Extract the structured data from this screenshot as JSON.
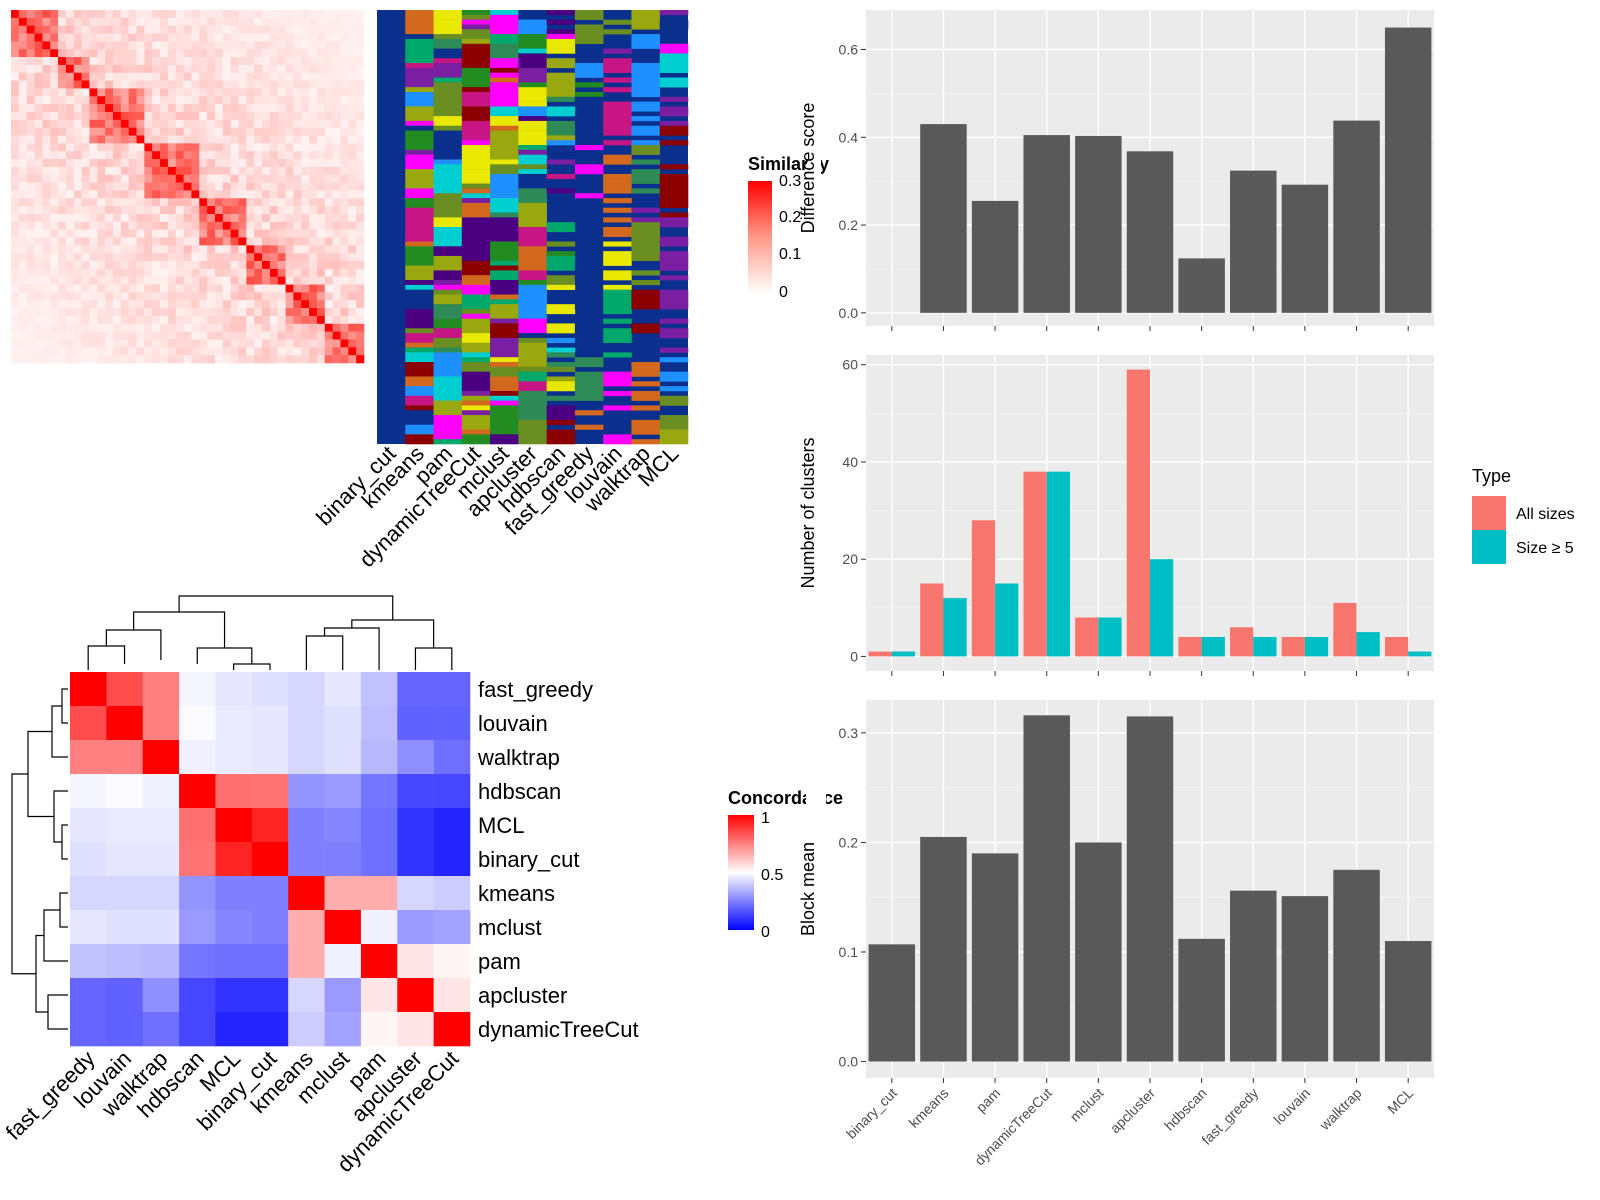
{
  "chart_data": [
    {
      "id": "similarity-heatmap",
      "type": "heatmap",
      "legend_title": "Similarity",
      "legend_ticks": [
        "0.3",
        "0.2",
        "0.1",
        "0"
      ],
      "colors": {
        "low": "#ffffff",
        "high": "#ff0000"
      }
    },
    {
      "id": "cluster-membership-heatmap",
      "type": "heatmap",
      "columns": [
        "binary_cut",
        "kmeans",
        "pam",
        "dynamicTreeCut",
        "mclust",
        "apcluster",
        "hdbscan",
        "fast_greedy",
        "louvain",
        "walktrap",
        "MCL"
      ],
      "background_color": "#0a2f8c"
    },
    {
      "id": "concordance-heatmap",
      "type": "heatmap",
      "legend_title": "Concordance",
      "legend_ticks": [
        "1",
        "0.5",
        "0"
      ],
      "colors": {
        "low": "#0000ff",
        "mid": "#ffffff",
        "high": "#ff0000"
      },
      "rows": [
        "fast_greedy",
        "louvain",
        "walktrap",
        "hdbscan",
        "MCL",
        "binary_cut",
        "kmeans",
        "mclust",
        "pam",
        "apcluster",
        "dynamicTreeCut"
      ],
      "columns": [
        "fast_greedy",
        "louvain",
        "walktrap",
        "hdbscan",
        "MCL",
        "binary_cut",
        "kmeans",
        "mclust",
        "pam",
        "apcluster",
        "dynamicTreeCut"
      ],
      "values": [
        [
          1.0,
          0.85,
          0.75,
          0.48,
          0.45,
          0.44,
          0.42,
          0.45,
          0.38,
          0.2,
          0.2
        ],
        [
          0.85,
          1.0,
          0.75,
          0.49,
          0.46,
          0.45,
          0.42,
          0.44,
          0.37,
          0.19,
          0.19
        ],
        [
          0.75,
          0.75,
          1.0,
          0.47,
          0.46,
          0.45,
          0.42,
          0.44,
          0.36,
          0.28,
          0.22
        ],
        [
          0.48,
          0.49,
          0.47,
          1.0,
          0.78,
          0.77,
          0.29,
          0.3,
          0.23,
          0.14,
          0.14
        ],
        [
          0.45,
          0.46,
          0.46,
          0.78,
          1.0,
          0.93,
          0.25,
          0.26,
          0.22,
          0.1,
          0.07
        ],
        [
          0.44,
          0.45,
          0.45,
          0.77,
          0.93,
          1.0,
          0.25,
          0.25,
          0.22,
          0.1,
          0.07
        ],
        [
          0.42,
          0.42,
          0.42,
          0.29,
          0.25,
          0.25,
          1.0,
          0.66,
          0.66,
          0.42,
          0.4
        ],
        [
          0.45,
          0.44,
          0.44,
          0.3,
          0.26,
          0.25,
          0.66,
          1.0,
          0.47,
          0.3,
          0.32
        ],
        [
          0.38,
          0.37,
          0.36,
          0.23,
          0.22,
          0.22,
          0.66,
          0.47,
          1.0,
          0.55,
          0.52
        ],
        [
          0.2,
          0.19,
          0.28,
          0.14,
          0.1,
          0.1,
          0.42,
          0.3,
          0.55,
          1.0,
          0.55
        ],
        [
          0.2,
          0.19,
          0.22,
          0.14,
          0.07,
          0.07,
          0.4,
          0.32,
          0.52,
          0.55,
          1.0
        ]
      ]
    },
    {
      "id": "difference-score",
      "type": "bar",
      "categories": [
        "binary_cut",
        "kmeans",
        "pam",
        "dynamicTreeCut",
        "mclust",
        "apcluster",
        "hdbscan",
        "fast_greedy",
        "louvain",
        "walktrap",
        "MCL"
      ],
      "values": [
        0.0,
        0.43,
        0.255,
        0.405,
        0.403,
        0.368,
        0.124,
        0.324,
        0.292,
        0.438,
        0.65
      ],
      "ylabel": "Difference score",
      "yticks": [
        0.0,
        0.2,
        0.4,
        0.6
      ],
      "ylim": [
        -0.03,
        0.69
      ]
    },
    {
      "id": "number-of-clusters",
      "type": "bar",
      "categories": [
        "binary_cut",
        "kmeans",
        "pam",
        "dynamicTreeCut",
        "mclust",
        "apcluster",
        "hdbscan",
        "fast_greedy",
        "louvain",
        "walktrap",
        "MCL"
      ],
      "series": [
        {
          "name": "All sizes",
          "color": "#f8766d",
          "values": [
            1,
            15,
            28,
            38,
            8,
            59,
            4,
            6,
            4,
            11,
            4
          ]
        },
        {
          "name": "Size ≥ 5",
          "color": "#00bfc4",
          "values": [
            1,
            12,
            15,
            38,
            8,
            20,
            4,
            4,
            4,
            5,
            1
          ]
        }
      ],
      "ylabel": "Number of clusters",
      "yticks": [
        0,
        20,
        40,
        60
      ],
      "ylim": [
        -3,
        62
      ],
      "legend_title": "Type"
    },
    {
      "id": "block-mean",
      "type": "bar",
      "categories": [
        "binary_cut",
        "kmeans",
        "pam",
        "dynamicTreeCut",
        "mclust",
        "apcluster",
        "hdbscan",
        "fast_greedy",
        "louvain",
        "walktrap",
        "MCL"
      ],
      "values": [
        0.107,
        0.205,
        0.19,
        0.316,
        0.2,
        0.315,
        0.112,
        0.156,
        0.151,
        0.175,
        0.11
      ],
      "ylabel": "Block mean",
      "yticks": [
        0.0,
        0.1,
        0.2,
        0.3
      ],
      "ylim": [
        -0.015,
        0.33
      ]
    }
  ]
}
